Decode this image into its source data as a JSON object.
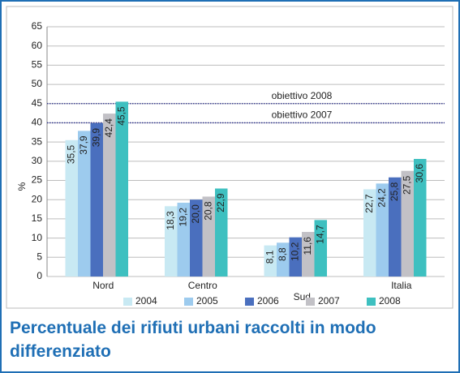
{
  "chart_data": {
    "type": "bar",
    "title": "Percentuale dei rifiuti urbani raccolti in modo differenziato",
    "ylabel": "%",
    "categories": [
      "Nord",
      "Centro",
      "Sud",
      "Italia"
    ],
    "series": [
      {
        "name": "2004",
        "color": "#c8e9f3",
        "values": [
          35.5,
          18.3,
          8.1,
          22.7
        ],
        "value_labels": [
          "35,5",
          "18,3",
          "8,1",
          "22,7"
        ]
      },
      {
        "name": "2005",
        "color": "#9dcbee",
        "values": [
          37.9,
          19.2,
          8.8,
          24.2
        ],
        "value_labels": [
          "37,9",
          "19,2",
          "8,8",
          "24,2"
        ]
      },
      {
        "name": "2006",
        "color": "#4a6fbe",
        "values": [
          39.9,
          20.0,
          10.2,
          25.8
        ],
        "value_labels": [
          "39,9",
          "20,0",
          "10,2",
          "25,8"
        ]
      },
      {
        "name": "2007",
        "color": "#c2c1c6",
        "values": [
          42.4,
          20.8,
          11.6,
          27.5
        ],
        "value_labels": [
          "42,4",
          "20,8",
          "11,6",
          "27,5"
        ]
      },
      {
        "name": "2008",
        "color": "#3ec0c0",
        "values": [
          45.5,
          22.9,
          14.7,
          30.6
        ],
        "value_labels": [
          "45,5",
          "22,9",
          "14,7",
          "30,6"
        ]
      }
    ],
    "reference_lines": [
      {
        "label": "obiettivo 2008",
        "value": 45
      },
      {
        "label": "obiettivo 2007",
        "value": 40
      }
    ],
    "ylim": [
      0,
      65
    ],
    "yticks": [
      0,
      5,
      10,
      15,
      20,
      25,
      30,
      35,
      40,
      45,
      50,
      55,
      60,
      65
    ],
    "grid": true,
    "legend": "bottom"
  }
}
